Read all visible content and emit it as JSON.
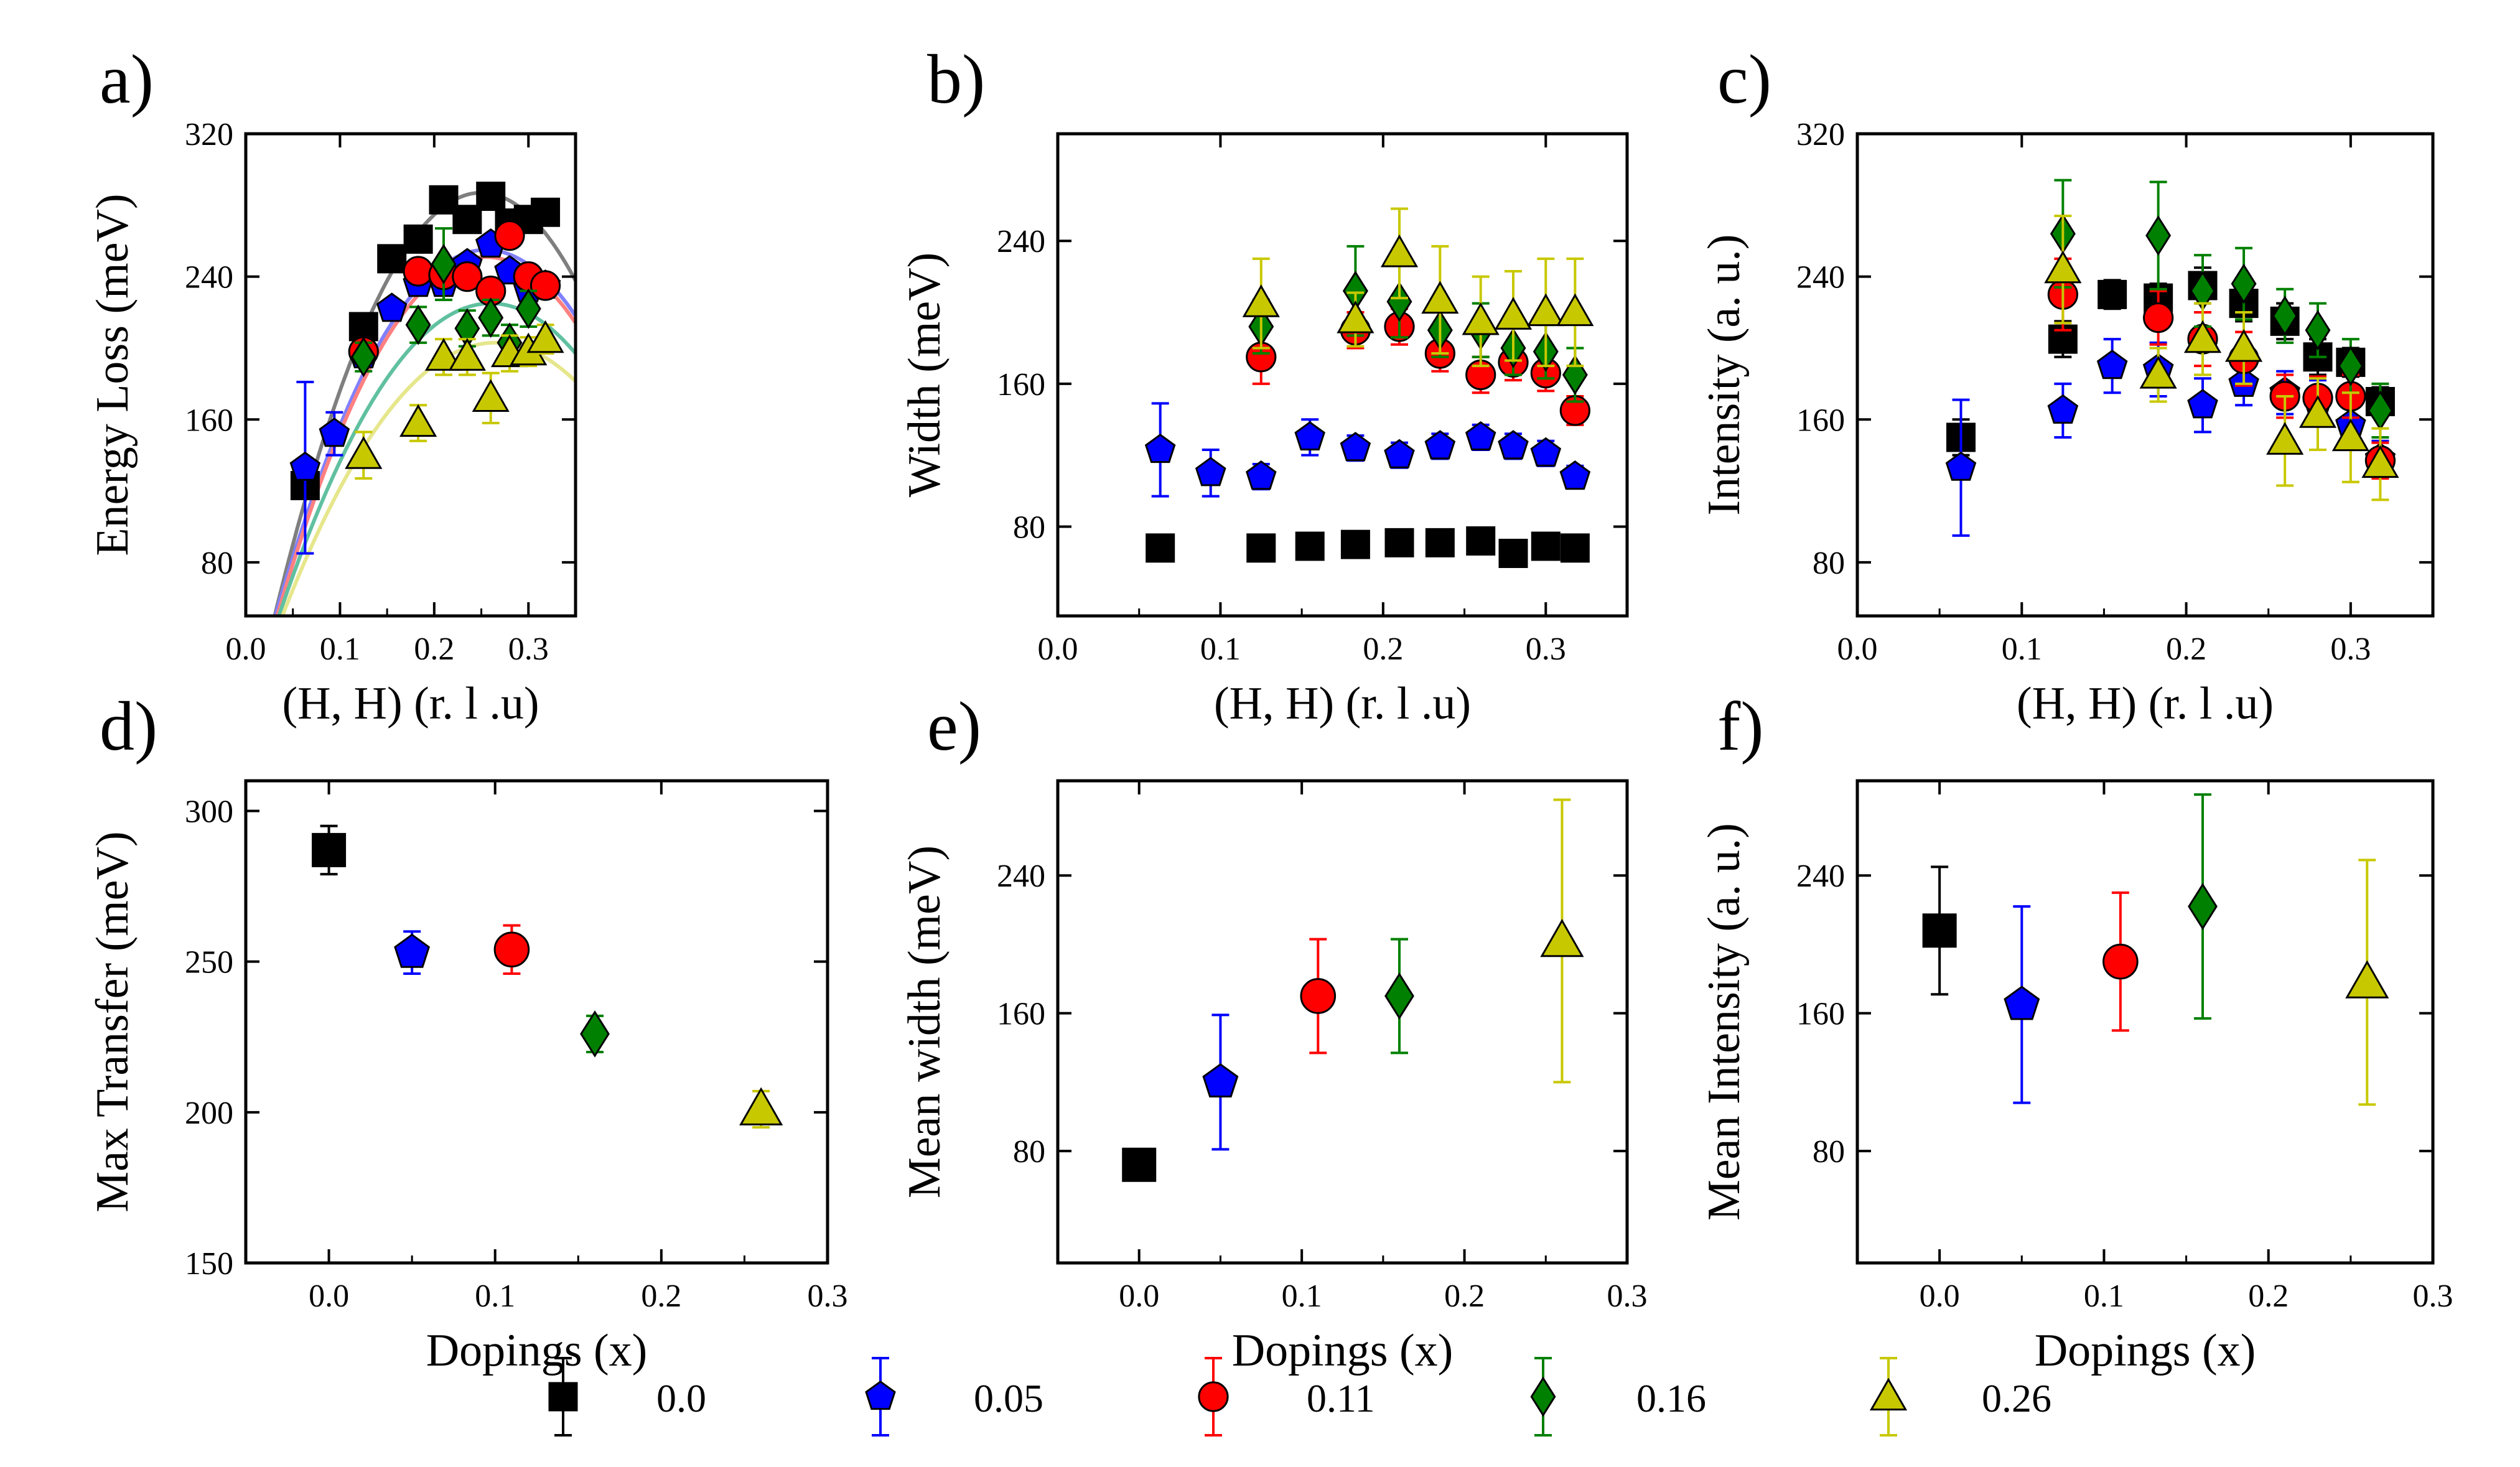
{
  "colors": {
    "0.0": "#000000",
    "0.05": "#0000ff",
    "0.11": "#ff0000",
    "0.16": "#008000",
    "0.26": "#c8c800",
    "fit_0.0": "#7f7f7f",
    "fit_0.05": "#8080ff",
    "fit_0.11": "#ff8080",
    "fit_0.16": "#60c0a0",
    "fit_0.26": "#e6e68c"
  },
  "markers": {
    "0.0": "square",
    "0.05": "pentagon",
    "0.11": "circle",
    "0.16": "diamond",
    "0.26": "triangle"
  },
  "legend": {
    "entries": [
      {
        "key": "0.0",
        "label": "0.0"
      },
      {
        "key": "0.05",
        "label": "0.05"
      },
      {
        "key": "0.11",
        "label": "0.11"
      },
      {
        "key": "0.16",
        "label": "0.16"
      },
      {
        "key": "0.26",
        "label": "0.26"
      }
    ]
  },
  "chart_data": [
    {
      "panel": "a)",
      "type": "scatter",
      "xlabel": "(H, H) (r. l .u)",
      "ylabel": "Energy Loss (meV)",
      "xlim": [
        0.0,
        0.35
      ],
      "ylim": [
        50,
        320
      ],
      "xticks": [
        0.0,
        0.1,
        0.2,
        0.3
      ],
      "xticklabels": [
        "0.0",
        "0.1",
        "0.2",
        "0.3"
      ],
      "yticks": [
        80,
        160,
        240,
        320
      ],
      "yticklabels": [
        "80",
        "160",
        "240",
        "320"
      ],
      "fits": [
        {
          "key": "0.0",
          "peak_x": 0.25,
          "peak_y": 287,
          "x0": 0.027
        },
        {
          "key": "0.05",
          "peak_x": 0.255,
          "peak_y": 255,
          "x0": 0.027
        },
        {
          "key": "0.11",
          "peak_x": 0.255,
          "peak_y": 251,
          "x0": 0.029
        },
        {
          "key": "0.16",
          "peak_x": 0.26,
          "peak_y": 225,
          "x0": 0.03
        },
        {
          "key": "0.26",
          "peak_x": 0.265,
          "peak_y": 203,
          "x0": 0.033
        }
      ],
      "series": [
        {
          "key": "0.0",
          "x": [
            0.063,
            0.125,
            0.155,
            0.183,
            0.21,
            0.235,
            0.26,
            0.28,
            0.3,
            0.318
          ],
          "y": [
            123,
            212,
            250,
            261,
            283,
            272,
            285,
            270,
            272,
            276
          ],
          "err": [
            6,
            6,
            5,
            5,
            5,
            5,
            5,
            5,
            5,
            5
          ]
        },
        {
          "key": "0.05",
          "x": [
            0.063,
            0.094,
            0.125,
            0.155,
            0.183,
            0.21,
            0.235,
            0.26,
            0.28,
            0.3,
            0.318
          ],
          "y": [
            133,
            152,
            196,
            222,
            236,
            236,
            247,
            258,
            243,
            233,
            235
          ],
          "err": [
            48,
            12,
            6,
            4,
            4,
            4,
            4,
            4,
            4,
            4,
            4
          ]
        },
        {
          "key": "0.11",
          "x": [
            0.125,
            0.183,
            0.21,
            0.235,
            0.26,
            0.28,
            0.3,
            0.318
          ],
          "y": [
            198,
            243,
            241,
            240,
            232,
            263,
            240,
            235
          ],
          "err": [
            6,
            6,
            6,
            6,
            6,
            6,
            6,
            6
          ]
        },
        {
          "key": "0.16",
          "x": [
            0.125,
            0.183,
            0.21,
            0.235,
            0.26,
            0.28,
            0.3
          ],
          "y": [
            195,
            213,
            247,
            211,
            217,
            203,
            222
          ],
          "err": [
            8,
            10,
            20,
            10,
            10,
            10,
            10
          ]
        },
        {
          "key": "0.26",
          "x": [
            0.125,
            0.183,
            0.21,
            0.235,
            0.26,
            0.28,
            0.3,
            0.318
          ],
          "y": [
            140,
            158,
            195,
            195,
            172,
            197,
            198,
            205
          ],
          "err": [
            13,
            10,
            10,
            10,
            14,
            10,
            8,
            8
          ]
        }
      ]
    },
    {
      "panel": "b)",
      "type": "scatter",
      "xlabel": "(H, H) (r. l .u)",
      "ylabel": "Width (meV)",
      "xlim": [
        0.0,
        0.35
      ],
      "ylim": [
        30,
        300
      ],
      "xticks": [
        0.0,
        0.1,
        0.2,
        0.3
      ],
      "xticklabels": [
        "0.0",
        "0.1",
        "0.2",
        "0.3"
      ],
      "yticks": [
        80,
        160,
        240
      ],
      "yticklabels": [
        "80",
        "160",
        "240"
      ],
      "series": [
        {
          "key": "0.0",
          "x": [
            0.063,
            0.125,
            0.155,
            0.183,
            0.21,
            0.235,
            0.26,
            0.28,
            0.3,
            0.318
          ],
          "y": [
            68,
            68,
            69,
            70,
            71,
            71,
            72,
            65,
            69,
            68
          ],
          "err": [
            0,
            0,
            0,
            0,
            0,
            0,
            0,
            0,
            0,
            0
          ]
        },
        {
          "key": "0.05",
          "x": [
            0.063,
            0.094,
            0.125,
            0.155,
            0.183,
            0.21,
            0.235,
            0.26,
            0.28,
            0.3,
            0.318
          ],
          "y": [
            123,
            110,
            108,
            130,
            124,
            120,
            125,
            130,
            125,
            121,
            108
          ],
          "err": [
            26,
            13,
            7,
            10,
            7,
            7,
            7,
            7,
            7,
            7,
            6
          ]
        },
        {
          "key": "0.11",
          "x": [
            0.125,
            0.183,
            0.21,
            0.235,
            0.26,
            0.28,
            0.3,
            0.318
          ],
          "y": [
            175,
            190,
            192,
            177,
            165,
            172,
            166,
            145
          ],
          "err": [
            15,
            10,
            10,
            10,
            10,
            10,
            10,
            8
          ]
        },
        {
          "key": "0.16",
          "x": [
            0.125,
            0.183,
            0.21,
            0.235,
            0.26,
            0.28,
            0.3,
            0.318
          ],
          "y": [
            192,
            212,
            206,
            190,
            190,
            180,
            178,
            165
          ],
          "err": [
            15,
            25,
            20,
            15,
            15,
            15,
            15,
            15
          ]
        },
        {
          "key": "0.26",
          "x": [
            0.125,
            0.183,
            0.21,
            0.235,
            0.26,
            0.28,
            0.3,
            0.318
          ],
          "y": [
            205,
            196,
            233,
            207,
            195,
            198,
            200,
            200
          ],
          "err": [
            25,
            15,
            25,
            30,
            25,
            25,
            30,
            30
          ]
        }
      ]
    },
    {
      "panel": "c)",
      "type": "scatter",
      "xlabel": "(H, H) (r. l .u)",
      "ylabel": "Intensity (a. u.)",
      "xlim": [
        0.0,
        0.35
      ],
      "ylim": [
        50,
        320
      ],
      "xticks": [
        0.0,
        0.1,
        0.2,
        0.3
      ],
      "xticklabels": [
        "0.0",
        "0.1",
        "0.2",
        "0.3"
      ],
      "yticks": [
        80,
        160,
        240,
        320
      ],
      "yticklabels": [
        "80",
        "160",
        "240",
        "320"
      ],
      "series": [
        {
          "key": "0.0",
          "x": [
            0.063,
            0.125,
            0.155,
            0.183,
            0.21,
            0.235,
            0.26,
            0.28,
            0.3,
            0.318
          ],
          "y": [
            150,
            205,
            230,
            228,
            235,
            225,
            215,
            195,
            192,
            170
          ],
          "err": [
            10,
            10,
            8,
            8,
            10,
            10,
            10,
            10,
            8,
            8
          ]
        },
        {
          "key": "0.05",
          "x": [
            0.063,
            0.125,
            0.155,
            0.183,
            0.21,
            0.235,
            0.26,
            0.28,
            0.3,
            0.318
          ],
          "y": [
            133,
            165,
            190,
            188,
            168,
            180,
            175,
            170,
            157,
            138
          ],
          "err": [
            38,
            15,
            15,
            15,
            15,
            12,
            12,
            12,
            10,
            10
          ]
        },
        {
          "key": "0.11",
          "x": [
            0.125,
            0.183,
            0.21,
            0.235,
            0.26,
            0.28,
            0.3,
            0.318
          ],
          "y": [
            230,
            217,
            205,
            194,
            173,
            172,
            173,
            137
          ],
          "err": [
            20,
            15,
            15,
            15,
            12,
            12,
            12,
            10
          ]
        },
        {
          "key": "0.16",
          "x": [
            0.125,
            0.183,
            0.21,
            0.235,
            0.26,
            0.28,
            0.3,
            0.318
          ],
          "y": [
            264,
            263,
            232,
            236,
            218,
            210,
            190,
            165
          ],
          "err": [
            30,
            30,
            20,
            20,
            15,
            15,
            15,
            15
          ]
        },
        {
          "key": "0.26",
          "x": [
            0.125,
            0.183,
            0.21,
            0.235,
            0.26,
            0.28,
            0.3,
            0.318
          ],
          "y": [
            244,
            185,
            205,
            200,
            148,
            163,
            150,
            135
          ],
          "err": [
            30,
            15,
            20,
            20,
            25,
            20,
            25,
            20
          ]
        }
      ]
    },
    {
      "panel": "d)",
      "type": "scatter",
      "xlabel": "Dopings (x)",
      "ylabel": "Max Transfer (meV)",
      "xlim": [
        -0.05,
        0.3
      ],
      "ylim": [
        150,
        310
      ],
      "xticks": [
        0.0,
        0.1,
        0.2,
        0.3
      ],
      "xticklabels": [
        "0.0",
        "0.1",
        "0.2",
        "0.3"
      ],
      "yticks": [
        150,
        200,
        250,
        300
      ],
      "yticklabels": [
        "150",
        "200",
        "250",
        "300"
      ],
      "series": [
        {
          "key": "0.0",
          "x": [
            0.0
          ],
          "y": [
            287
          ],
          "err": [
            8
          ]
        },
        {
          "key": "0.05",
          "x": [
            0.05
          ],
          "y": [
            253
          ],
          "err": [
            7
          ]
        },
        {
          "key": "0.11",
          "x": [
            0.11
          ],
          "y": [
            254
          ],
          "err": [
            8
          ]
        },
        {
          "key": "0.16",
          "x": [
            0.16
          ],
          "y": [
            226
          ],
          "err": [
            6
          ]
        },
        {
          "key": "0.26",
          "x": [
            0.26
          ],
          "y": [
            201
          ],
          "err": [
            6
          ]
        }
      ]
    },
    {
      "panel": "e)",
      "type": "scatter",
      "xlabel": "Dopings (x)",
      "ylabel": "Mean width (meV)",
      "xlim": [
        -0.05,
        0.3
      ],
      "ylim": [
        15,
        295
      ],
      "xticks": [
        0.0,
        0.1,
        0.2,
        0.3
      ],
      "xticklabels": [
        "0.0",
        "0.1",
        "0.2",
        "0.3"
      ],
      "yticks": [
        80,
        160,
        240
      ],
      "yticklabels": [
        "80",
        "160",
        "240"
      ],
      "series": [
        {
          "key": "0.0",
          "x": [
            0.0
          ],
          "y": [
            72
          ],
          "err": [
            2
          ]
        },
        {
          "key": "0.05",
          "x": [
            0.05
          ],
          "y": [
            120
          ],
          "err": [
            39
          ]
        },
        {
          "key": "0.11",
          "x": [
            0.11
          ],
          "y": [
            170
          ],
          "err": [
            33
          ]
        },
        {
          "key": "0.16",
          "x": [
            0.16
          ],
          "y": [
            170
          ],
          "err": [
            33
          ]
        },
        {
          "key": "0.26",
          "x": [
            0.26
          ],
          "y": [
            202
          ],
          "err": [
            82
          ]
        }
      ]
    },
    {
      "panel": "f)",
      "type": "scatter",
      "xlabel": "Dopings (x)",
      "ylabel": "Mean Intensity (a. u.)",
      "xlim": [
        -0.05,
        0.3
      ],
      "ylim": [
        15,
        295
      ],
      "xticks": [
        0.0,
        0.1,
        0.2,
        0.3
      ],
      "xticklabels": [
        "0.0",
        "0.1",
        "0.2",
        "0.3"
      ],
      "yticks": [
        80,
        160,
        240
      ],
      "yticklabels": [
        "80",
        "160",
        "240"
      ],
      "series": [
        {
          "key": "0.0",
          "x": [
            0.0
          ],
          "y": [
            208
          ],
          "err": [
            37
          ]
        },
        {
          "key": "0.05",
          "x": [
            0.05
          ],
          "y": [
            165
          ],
          "err": [
            57
          ]
        },
        {
          "key": "0.11",
          "x": [
            0.11
          ],
          "y": [
            190
          ],
          "err": [
            40
          ]
        },
        {
          "key": "0.16",
          "x": [
            0.16
          ],
          "y": [
            222
          ],
          "err": [
            65
          ]
        },
        {
          "key": "0.26",
          "x": [
            0.26
          ],
          "y": [
            178
          ],
          "err": [
            71
          ]
        }
      ]
    }
  ]
}
